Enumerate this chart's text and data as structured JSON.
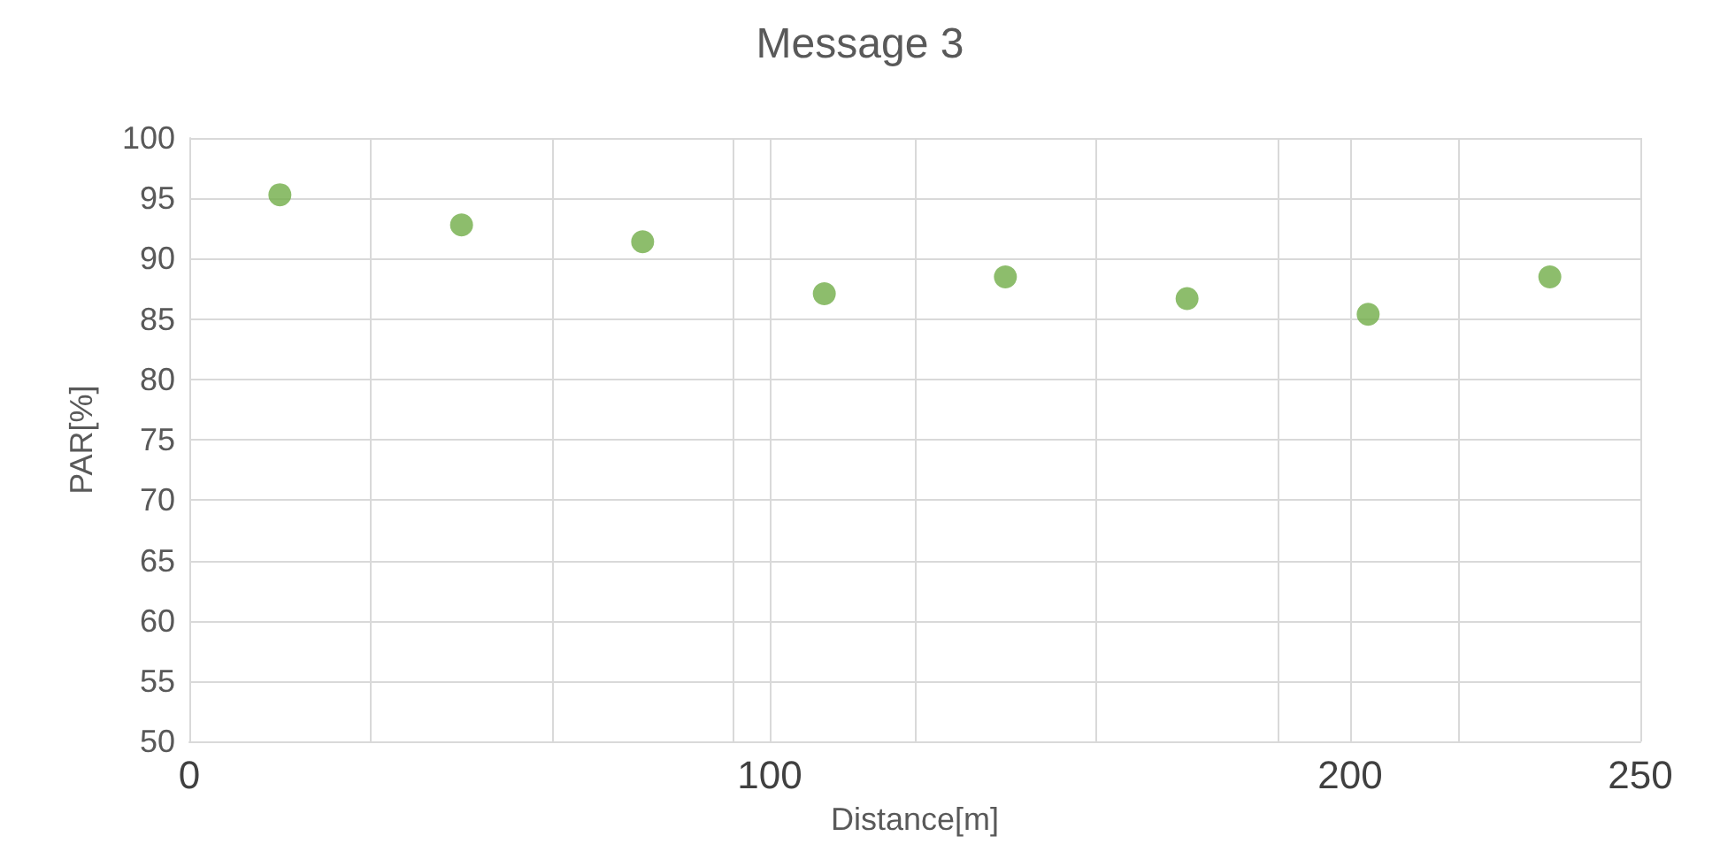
{
  "chart_data": {
    "type": "scatter",
    "title": "Message 3",
    "xlabel": "Distance[m]",
    "ylabel": "PAR[%]",
    "x": [
      15.6,
      46.9,
      78.1,
      109.4,
      140.6,
      171.9,
      203.1,
      234.4
    ],
    "series": [
      {
        "color": "#70ad47",
        "values": [
          95.3,
          92.8,
          91.4,
          87.1,
          88.5,
          86.7,
          85.4,
          88.5
        ]
      }
    ],
    "xlim": [
      0,
      250
    ],
    "xticks": [
      0,
      {
        "value": 31.25,
        "label": null
      },
      {
        "value": 62.5,
        "label": null
      },
      {
        "value": 93.75,
        "label": null
      },
      100,
      {
        "value": 125,
        "label": null
      },
      {
        "value": 156.25,
        "label": null
      },
      {
        "value": 187.5,
        "label": null
      },
      200,
      {
        "value": 218.75,
        "label": null
      },
      250
    ],
    "ylim": [
      50,
      100
    ],
    "yticks": [
      50,
      55,
      60,
      65,
      70,
      75,
      80,
      85,
      90,
      95,
      100
    ],
    "grid": true,
    "marker": "circle"
  }
}
